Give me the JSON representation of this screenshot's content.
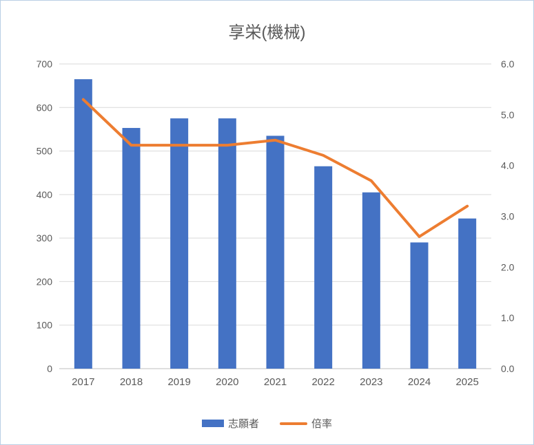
{
  "chart_data": {
    "type": "combo",
    "title": "享栄(機械)",
    "categories": [
      "2017",
      "2018",
      "2019",
      "2020",
      "2021",
      "2022",
      "2023",
      "2024",
      "2025"
    ],
    "series": [
      {
        "name": "志願者",
        "type": "bar",
        "axis": "left",
        "color": "#4472C4",
        "values": [
          665,
          553,
          575,
          575,
          535,
          465,
          405,
          290,
          345
        ]
      },
      {
        "name": "倍率",
        "type": "line",
        "axis": "right",
        "color": "#ED7D31",
        "values": [
          5.3,
          4.4,
          4.4,
          4.4,
          4.5,
          4.2,
          3.7,
          2.6,
          3.2
        ]
      }
    ],
    "left_axis": {
      "min": 0,
      "max": 700,
      "step": 100,
      "tick_labels": [
        "0",
        "100",
        "200",
        "300",
        "400",
        "500",
        "600",
        "700"
      ]
    },
    "right_axis": {
      "min": 0,
      "max": 6,
      "step": 1,
      "tick_labels": [
        "0.0",
        "1.0",
        "2.0",
        "3.0",
        "4.0",
        "5.0",
        "6.0"
      ]
    },
    "grid": true,
    "legend_position": "bottom",
    "colors": {
      "text": "#595959",
      "gridline": "#D9D9D9",
      "axis_line": "#BFBFBF",
      "bar": "#4472C4",
      "line": "#ED7D31"
    }
  }
}
